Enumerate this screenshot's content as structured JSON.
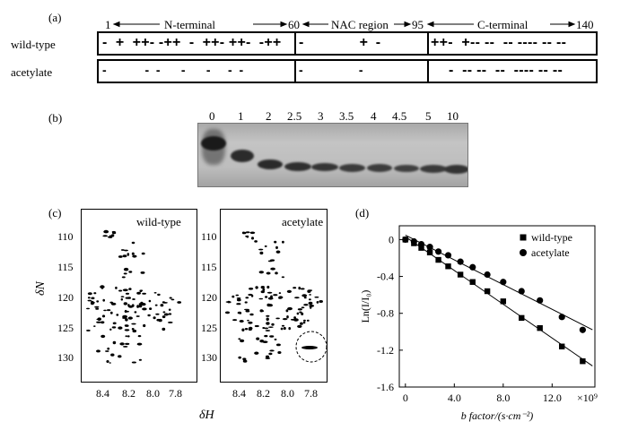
{
  "panel_a": {
    "label": "(a)",
    "ruler": {
      "n_start": "1",
      "n_label": "N-terminal",
      "n_end": "60",
      "nac_label": "NAC region",
      "nac_end": "95",
      "c_label": "C-terminal",
      "c_end": "140"
    },
    "rows": [
      {
        "name": "wild-type",
        "segments": [
          "-  +  ++- -++  -  ++- ++-  -++",
          "-              +  -",
          "++-  +-- --  -- ---- -- --"
        ]
      },
      {
        "name": "acetylate",
        "segments": [
          "-           -  -      -      -     -  -",
          "-                -",
          "-  -- --  --  ---- -- --"
        ]
      }
    ]
  },
  "panel_b": {
    "label": "(b)",
    "lanes": [
      "0",
      "1",
      "2",
      "2.5",
      "3",
      "3.5",
      "4",
      "4.5",
      "5",
      "10"
    ]
  },
  "panel_c": {
    "label": "(c)",
    "spectra": [
      {
        "name": "wild-type"
      },
      {
        "name": "acetylate"
      }
    ],
    "y_label": "δN",
    "x_label": "δH",
    "y_ticks": [
      "110",
      "115",
      "120",
      "125",
      "130"
    ],
    "x_ticks": [
      "8.4",
      "8.2",
      "8.0",
      "7.8"
    ]
  },
  "panel_d": {
    "label": "(d)"
  },
  "chart_data": {
    "type": "scatter",
    "title": "",
    "xlabel": "b factor/(s·cm⁻²)",
    "ylabel": "Ln(I/I₀)",
    "x_multiplier": "×10⁹",
    "xlim": [
      -0.5,
      15.5
    ],
    "ylim": [
      -1.6,
      0.15
    ],
    "x_ticks": [
      "0",
      "4.0",
      "8.0",
      "12.0"
    ],
    "y_ticks": [
      "0",
      "-0.4",
      "-0.8",
      "-1.2",
      "-1.6"
    ],
    "legend": "top-right",
    "series": [
      {
        "name": "wild-type",
        "marker": "square",
        "x": [
          0,
          0.7,
          1.3,
          2.0,
          2.7,
          3.5,
          4.5,
          5.5,
          6.7,
          8.0,
          9.5,
          11.0,
          12.8,
          14.5
        ],
        "y": [
          0,
          -0.04,
          -0.09,
          -0.14,
          -0.22,
          -0.29,
          -0.38,
          -0.46,
          -0.56,
          -0.67,
          -0.85,
          -0.96,
          -1.16,
          -1.32
        ]
      },
      {
        "name": "acetylate",
        "marker": "circle",
        "x": [
          0,
          0.7,
          1.3,
          2.0,
          2.7,
          3.5,
          4.5,
          5.5,
          6.7,
          8.0,
          9.5,
          11.0,
          12.8,
          14.5
        ],
        "y": [
          0,
          -0.02,
          -0.05,
          -0.08,
          -0.13,
          -0.17,
          -0.24,
          -0.3,
          -0.38,
          -0.46,
          -0.56,
          -0.66,
          -0.84,
          -0.98
        ]
      }
    ]
  }
}
